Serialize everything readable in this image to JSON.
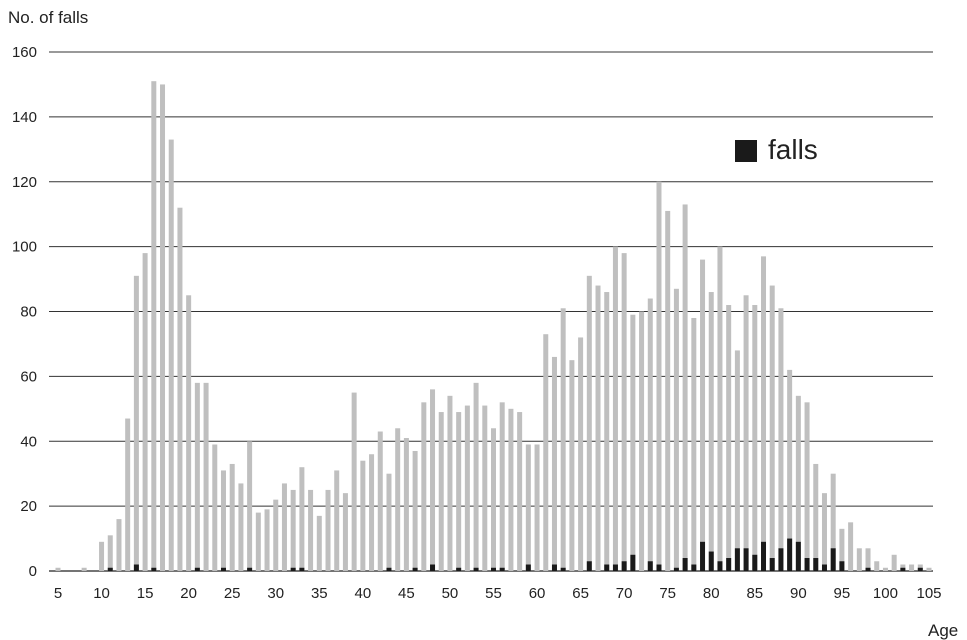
{
  "chart_data": {
    "type": "bar",
    "ylabel": "No. of falls",
    "xlabel": "Age",
    "ylim": [
      0,
      160
    ],
    "y_ticks": [
      0,
      20,
      40,
      60,
      80,
      100,
      120,
      140,
      160
    ],
    "x_ticks": [
      5,
      10,
      15,
      20,
      25,
      30,
      35,
      40,
      45,
      50,
      55,
      60,
      65,
      70,
      75,
      80,
      85,
      90,
      95,
      100,
      105
    ],
    "xlim": [
      5,
      105
    ],
    "grid": "horizontal",
    "legend_position": "top-right",
    "colors": {
      "total": "#bfbfbf",
      "falls": "#1a1a1a"
    },
    "series": [
      {
        "name": "",
        "color": "#bfbfbf",
        "x": [
          5,
          6,
          7,
          8,
          9,
          10,
          11,
          12,
          13,
          14,
          15,
          16,
          17,
          18,
          19,
          20,
          21,
          22,
          23,
          24,
          25,
          26,
          27,
          28,
          29,
          30,
          31,
          32,
          33,
          34,
          35,
          36,
          37,
          38,
          39,
          40,
          41,
          42,
          43,
          44,
          45,
          46,
          47,
          48,
          49,
          50,
          51,
          52,
          53,
          54,
          55,
          56,
          57,
          58,
          59,
          60,
          61,
          62,
          63,
          64,
          65,
          66,
          67,
          68,
          69,
          70,
          71,
          72,
          73,
          74,
          75,
          76,
          77,
          78,
          79,
          80,
          81,
          82,
          83,
          84,
          85,
          86,
          87,
          88,
          89,
          90,
          91,
          92,
          93,
          94,
          95,
          96,
          97,
          98,
          99,
          100,
          101,
          102,
          103,
          104,
          105
        ],
        "values": [
          1,
          0,
          0,
          1,
          0,
          9,
          11,
          16,
          47,
          91,
          98,
          151,
          150,
          133,
          112,
          85,
          58,
          58,
          39,
          31,
          33,
          27,
          40,
          18,
          19,
          22,
          27,
          25,
          32,
          25,
          17,
          25,
          31,
          24,
          55,
          34,
          36,
          43,
          30,
          44,
          41,
          37,
          52,
          56,
          49,
          54,
          49,
          51,
          58,
          51,
          44,
          52,
          50,
          49,
          39,
          39,
          73,
          66,
          81,
          65,
          72,
          91,
          88,
          86,
          100,
          98,
          79,
          80,
          84,
          120,
          111,
          87,
          113,
          78,
          96,
          86,
          100,
          82,
          68,
          85,
          82,
          97,
          88,
          81,
          62,
          54,
          52,
          33,
          24,
          30,
          13,
          15,
          7,
          7,
          3,
          1,
          5,
          2,
          2,
          2,
          1
        ]
      },
      {
        "name": "falls",
        "color": "#1a1a1a",
        "x": [
          11,
          14,
          16,
          21,
          24,
          27,
          32,
          33,
          43,
          46,
          48,
          51,
          53,
          55,
          56,
          59,
          62,
          63,
          66,
          68,
          69,
          70,
          71,
          73,
          74,
          76,
          77,
          78,
          79,
          80,
          81,
          82,
          83,
          84,
          85,
          86,
          87,
          88,
          89,
          90,
          91,
          92,
          93,
          94,
          95,
          98,
          102,
          104
        ],
        "values": [
          1,
          2,
          1,
          1,
          1,
          1,
          1,
          1,
          1,
          1,
          2,
          1,
          1,
          1,
          1,
          2,
          2,
          1,
          3,
          2,
          2,
          3,
          5,
          3,
          2,
          1,
          4,
          2,
          9,
          6,
          3,
          4,
          7,
          7,
          5,
          9,
          4,
          7,
          10,
          9,
          4,
          4,
          2,
          7,
          3,
          1,
          1,
          1
        ]
      }
    ]
  }
}
